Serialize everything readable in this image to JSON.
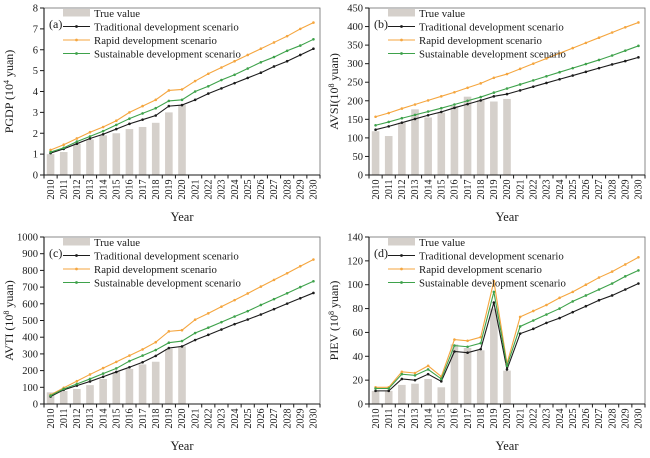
{
  "years": [
    "2010",
    "2011",
    "2012",
    "2013",
    "2014",
    "2015",
    "2016",
    "2017",
    "2018",
    "2019",
    "2020",
    "2021",
    "2022",
    "2023",
    "2024",
    "2025",
    "2026",
    "2027",
    "2028",
    "2029",
    "2030"
  ],
  "xlabel": "Year",
  "legend": {
    "true_value": "True value",
    "traditional": "Traditional development scenario",
    "rapid": "Rapid development scenario",
    "sustainable": "Sustainable development scenario"
  },
  "colors": {
    "bar": "#D5D0CB",
    "traditional": "#1C1C1C",
    "rapid": "#F5A63F",
    "sustainable": "#3EA24B",
    "frame": "#6b6b6b",
    "axis": "#1a1a1a"
  },
  "chart_data": [
    {
      "panel": "(a)",
      "type": "line",
      "title": "",
      "xlabel": "Year",
      "ylabel": {
        "pre": "PGDP (10",
        "sup": "4",
        "post": " yuan)"
      },
      "ylim": [
        0,
        8
      ],
      "ytick_step": 1,
      "legend_position": "top-left",
      "grid": false,
      "bar_series": {
        "name": "True value",
        "values": [
          1.0,
          1.1,
          1.5,
          1.7,
          1.9,
          2.0,
          2.2,
          2.3,
          2.5,
          3.0,
          3.35
        ]
      },
      "series": [
        {
          "name": "Traditional development scenario",
          "key": "traditional",
          "values": [
            1.05,
            1.25,
            1.5,
            1.75,
            1.95,
            2.2,
            2.45,
            2.65,
            2.85,
            3.3,
            3.35,
            3.6,
            3.9,
            4.15,
            4.4,
            4.65,
            4.9,
            5.2,
            5.45,
            5.75,
            6.05
          ]
        },
        {
          "name": "Rapid development scenario",
          "key": "rapid",
          "values": [
            1.2,
            1.45,
            1.75,
            2.05,
            2.3,
            2.6,
            3.0,
            3.3,
            3.6,
            4.05,
            4.1,
            4.5,
            4.85,
            5.15,
            5.45,
            5.75,
            6.05,
            6.35,
            6.65,
            7.0,
            7.3
          ]
        },
        {
          "name": "Sustainable development scenario",
          "key": "sustainable",
          "values": [
            1.1,
            1.3,
            1.6,
            1.85,
            2.1,
            2.4,
            2.7,
            2.95,
            3.2,
            3.55,
            3.6,
            4.0,
            4.25,
            4.55,
            4.8,
            5.1,
            5.4,
            5.65,
            5.95,
            6.2,
            6.5
          ]
        }
      ]
    },
    {
      "panel": "(b)",
      "type": "line",
      "title": "",
      "xlabel": "Year",
      "ylabel": {
        "pre": "AVSI(10",
        "sup": "8",
        "post": " yuan)"
      },
      "ylim": [
        0,
        450
      ],
      "ytick_step": 50,
      "legend_position": "top-left",
      "grid": false,
      "bar_series": {
        "name": "True value",
        "values": [
          118,
          105,
          141,
          177,
          155,
          168,
          186,
          211,
          202,
          198,
          205
        ]
      },
      "series": [
        {
          "name": "Traditional development scenario",
          "key": "traditional",
          "values": [
            122,
            131,
            141,
            151,
            161,
            170,
            181,
            191,
            201,
            212,
            218,
            228,
            238,
            248,
            258,
            268,
            278,
            288,
            298,
            307,
            317
          ]
        },
        {
          "name": "Rapid development scenario",
          "key": "rapid",
          "values": [
            157,
            167,
            179,
            190,
            201,
            212,
            223,
            235,
            247,
            262,
            272,
            286,
            300,
            314,
            328,
            342,
            356,
            370,
            384,
            398,
            411
          ]
        },
        {
          "name": "Sustainable development scenario",
          "key": "sustainable",
          "values": [
            134,
            143,
            153,
            162,
            171,
            180,
            190,
            200,
            210,
            222,
            233,
            244,
            255,
            266,
            277,
            288,
            299,
            310,
            322,
            335,
            348
          ]
        }
      ]
    },
    {
      "panel": "(c)",
      "type": "line",
      "title": "",
      "xlabel": "Year",
      "ylabel": {
        "pre": "AVTI (10",
        "sup": "8",
        "post": " yuan)"
      },
      "ylim": [
        0,
        1000
      ],
      "ytick_step": 100,
      "legend_position": "top-left",
      "grid": false,
      "bar_series": {
        "name": "True value",
        "values": [
          70,
          78,
          90,
          113,
          150,
          193,
          210,
          237,
          253,
          330,
          345
        ]
      },
      "series": [
        {
          "name": "Traditional development scenario",
          "key": "traditional",
          "values": [
            45,
            85,
            110,
            135,
            163,
            192,
            220,
            250,
            288,
            335,
            345,
            383,
            414,
            446,
            478,
            506,
            536,
            568,
            601,
            633,
            665
          ]
        },
        {
          "name": "Rapid development scenario",
          "key": "rapid",
          "values": [
            55,
            97,
            137,
            177,
            215,
            252,
            290,
            327,
            370,
            435,
            442,
            505,
            543,
            583,
            622,
            662,
            703,
            743,
            783,
            825,
            865
          ]
        },
        {
          "name": "Sustainable development scenario",
          "key": "sustainable",
          "values": [
            50,
            90,
            120,
            150,
            182,
            213,
            257,
            290,
            323,
            367,
            377,
            425,
            457,
            490,
            524,
            556,
            593,
            628,
            663,
            700,
            735
          ]
        }
      ]
    },
    {
      "panel": "(d)",
      "type": "line",
      "title": "",
      "xlabel": "Year",
      "ylabel": {
        "pre": "PIEV (10",
        "sup": "8",
        "post": " yuan)"
      },
      "ylim": [
        0,
        140
      ],
      "ytick_step": 20,
      "legend_position": "top-left",
      "grid": false,
      "bar_series": {
        "name": "True value",
        "values": [
          11,
          11,
          16,
          17,
          21,
          14,
          50,
          47,
          45,
          80,
          28
        ]
      },
      "series": [
        {
          "name": "Traditional development scenario",
          "key": "traditional",
          "values": [
            11,
            11,
            21,
            20,
            25,
            19,
            44,
            43,
            46,
            85,
            29,
            59,
            63,
            68,
            72,
            77,
            82,
            87,
            91,
            96,
            101
          ]
        },
        {
          "name": "Rapid development scenario",
          "key": "rapid",
          "values": [
            14,
            14,
            27,
            26,
            32,
            23,
            54,
            53,
            56,
            103,
            34,
            73,
            78,
            83,
            89,
            94,
            100,
            106,
            111,
            117,
            123
          ]
        },
        {
          "name": "Sustainable development scenario",
          "key": "sustainable",
          "values": [
            13,
            13,
            25,
            24,
            29,
            21,
            49,
            48,
            51,
            94,
            32,
            65,
            70,
            75,
            80,
            86,
            91,
            96,
            101,
            107,
            112
          ]
        }
      ]
    }
  ]
}
